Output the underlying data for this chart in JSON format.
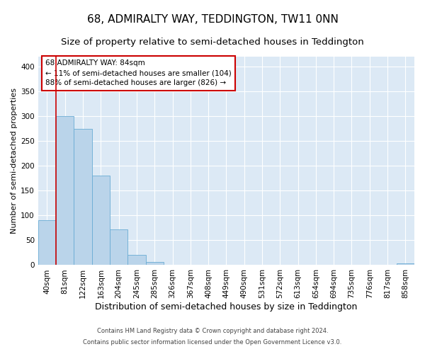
{
  "title": "68, ADMIRALTY WAY, TEDDINGTON, TW11 0NN",
  "subtitle": "Size of property relative to semi-detached houses in Teddington",
  "xlabel": "Distribution of semi-detached houses by size in Teddington",
  "ylabel": "Number of semi-detached properties",
  "footer_line1": "Contains HM Land Registry data © Crown copyright and database right 2024.",
  "footer_line2": "Contains public sector information licensed under the Open Government Licence v3.0.",
  "bar_labels": [
    "40sqm",
    "81sqm",
    "122sqm",
    "163sqm",
    "204sqm",
    "245sqm",
    "285sqm",
    "326sqm",
    "367sqm",
    "408sqm",
    "449sqm",
    "490sqm",
    "531sqm",
    "572sqm",
    "613sqm",
    "654sqm",
    "694sqm",
    "735sqm",
    "776sqm",
    "817sqm",
    "858sqm"
  ],
  "bar_values": [
    90,
    300,
    275,
    181,
    72,
    20,
    6,
    0,
    0,
    0,
    0,
    0,
    0,
    0,
    0,
    0,
    0,
    0,
    0,
    0,
    3
  ],
  "bar_color": "#bad4ea",
  "bar_edge_color": "#6aacd4",
  "plot_bg_color": "#dce9f5",
  "figure_bg_color": "#ffffff",
  "grid_color": "#ffffff",
  "vline_color": "#cc0000",
  "vline_x_index": 1,
  "annotation_text": "68 ADMIRALTY WAY: 84sqm\n← 11% of semi-detached houses are smaller (104)\n88% of semi-detached houses are larger (826) →",
  "annotation_box_color": "#ffffff",
  "annotation_border_color": "#cc0000",
  "ylim": [
    0,
    420
  ],
  "yticks": [
    0,
    50,
    100,
    150,
    200,
    250,
    300,
    350,
    400
  ],
  "title_fontsize": 11,
  "subtitle_fontsize": 9.5,
  "xlabel_fontsize": 9,
  "ylabel_fontsize": 8,
  "tick_fontsize": 7.5,
  "annotation_fontsize": 7.5,
  "footer_fontsize": 6
}
